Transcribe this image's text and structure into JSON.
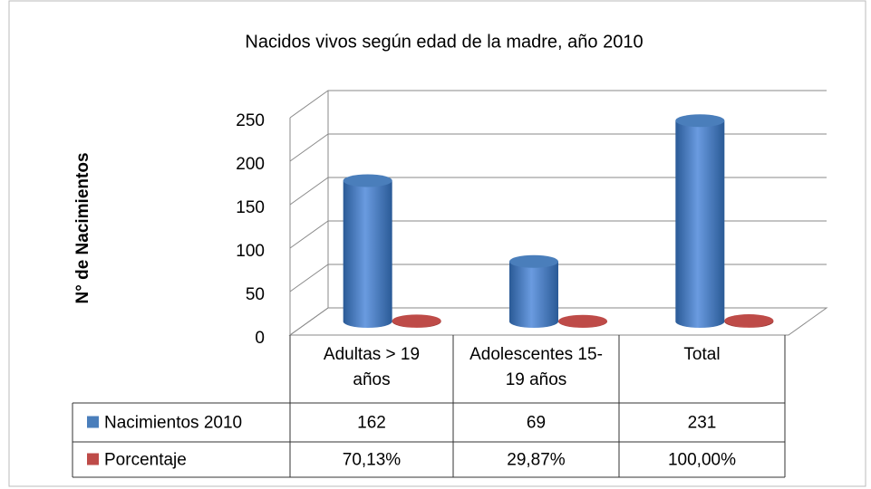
{
  "chart_data": {
    "type": "cylinder",
    "title": "Nacidos vivos según edad de la madre, año 2010",
    "ylabel": "N° de Nacimientos",
    "categories": [
      "Adultas > 19 años",
      "Adolescentes 15-19 años",
      "Total"
    ],
    "series": [
      {
        "name": "Nacimientos 2010",
        "color": "#4a7ebb",
        "values": [
          162,
          69,
          231
        ]
      },
      {
        "name": "Porcentaje",
        "color": "#be4b48",
        "values": [
          0.7013,
          0.2987,
          1
        ],
        "value_labels": [
          "70,13%",
          "29,87%",
          "100,00%"
        ]
      }
    ],
    "ylim": [
      0,
      250
    ],
    "yticks": [
      0,
      50,
      100,
      150,
      200,
      250
    ],
    "grid": true,
    "data_table": true
  }
}
